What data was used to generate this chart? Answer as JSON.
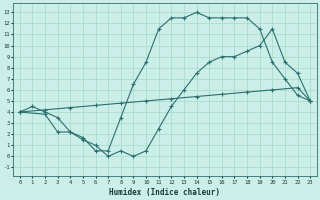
{
  "xlabel": "Humidex (Indice chaleur)",
  "bg_color": "#cceee8",
  "grid_color": "#aaddcc",
  "line_color": "#2a7070",
  "xlim": [
    -0.5,
    23.5
  ],
  "ylim": [
    -1.8,
    13.8
  ],
  "xticks": [
    0,
    1,
    2,
    3,
    4,
    5,
    6,
    7,
    8,
    9,
    10,
    11,
    12,
    13,
    14,
    15,
    16,
    17,
    18,
    19,
    20,
    21,
    22,
    23
  ],
  "yticks": [
    -1,
    0,
    1,
    2,
    3,
    4,
    5,
    6,
    7,
    8,
    9,
    10,
    11,
    12,
    13
  ],
  "line1_x": [
    0,
    1,
    2,
    3,
    4,
    5,
    6,
    7,
    8,
    9,
    10,
    11,
    12,
    13,
    14,
    15,
    16,
    17,
    18,
    19,
    20,
    21,
    22,
    23
  ],
  "line1_y": [
    4,
    4.5,
    4,
    3.5,
    2.2,
    1.7,
    0.5,
    0.5,
    3.5,
    6.5,
    8.5,
    11.5,
    12.5,
    12.5,
    13,
    12.5,
    12.5,
    12.5,
    12.5,
    11.5,
    8.5,
    7.0,
    5.5,
    5.0
  ],
  "line2_x": [
    0,
    2,
    3,
    4,
    5,
    6,
    7,
    8,
    9,
    10,
    11,
    12,
    13,
    14,
    15,
    16,
    17,
    18,
    19,
    20,
    21,
    22,
    23
  ],
  "line2_y": [
    4,
    3.8,
    2.2,
    2.2,
    1.5,
    1,
    0.0,
    0.5,
    0.0,
    0.5,
    2.5,
    4.5,
    6.0,
    7.5,
    8.5,
    9.0,
    9.0,
    9.5,
    10.0,
    11.5,
    8.5,
    7.5,
    5.0
  ],
  "line3_x": [
    0,
    2,
    4,
    6,
    8,
    10,
    12,
    14,
    16,
    18,
    20,
    22,
    23
  ],
  "line3_y": [
    4,
    4.2,
    4.4,
    4.6,
    4.8,
    5.0,
    5.2,
    5.4,
    5.6,
    5.8,
    6.0,
    6.2,
    5.0
  ],
  "marker": "+"
}
